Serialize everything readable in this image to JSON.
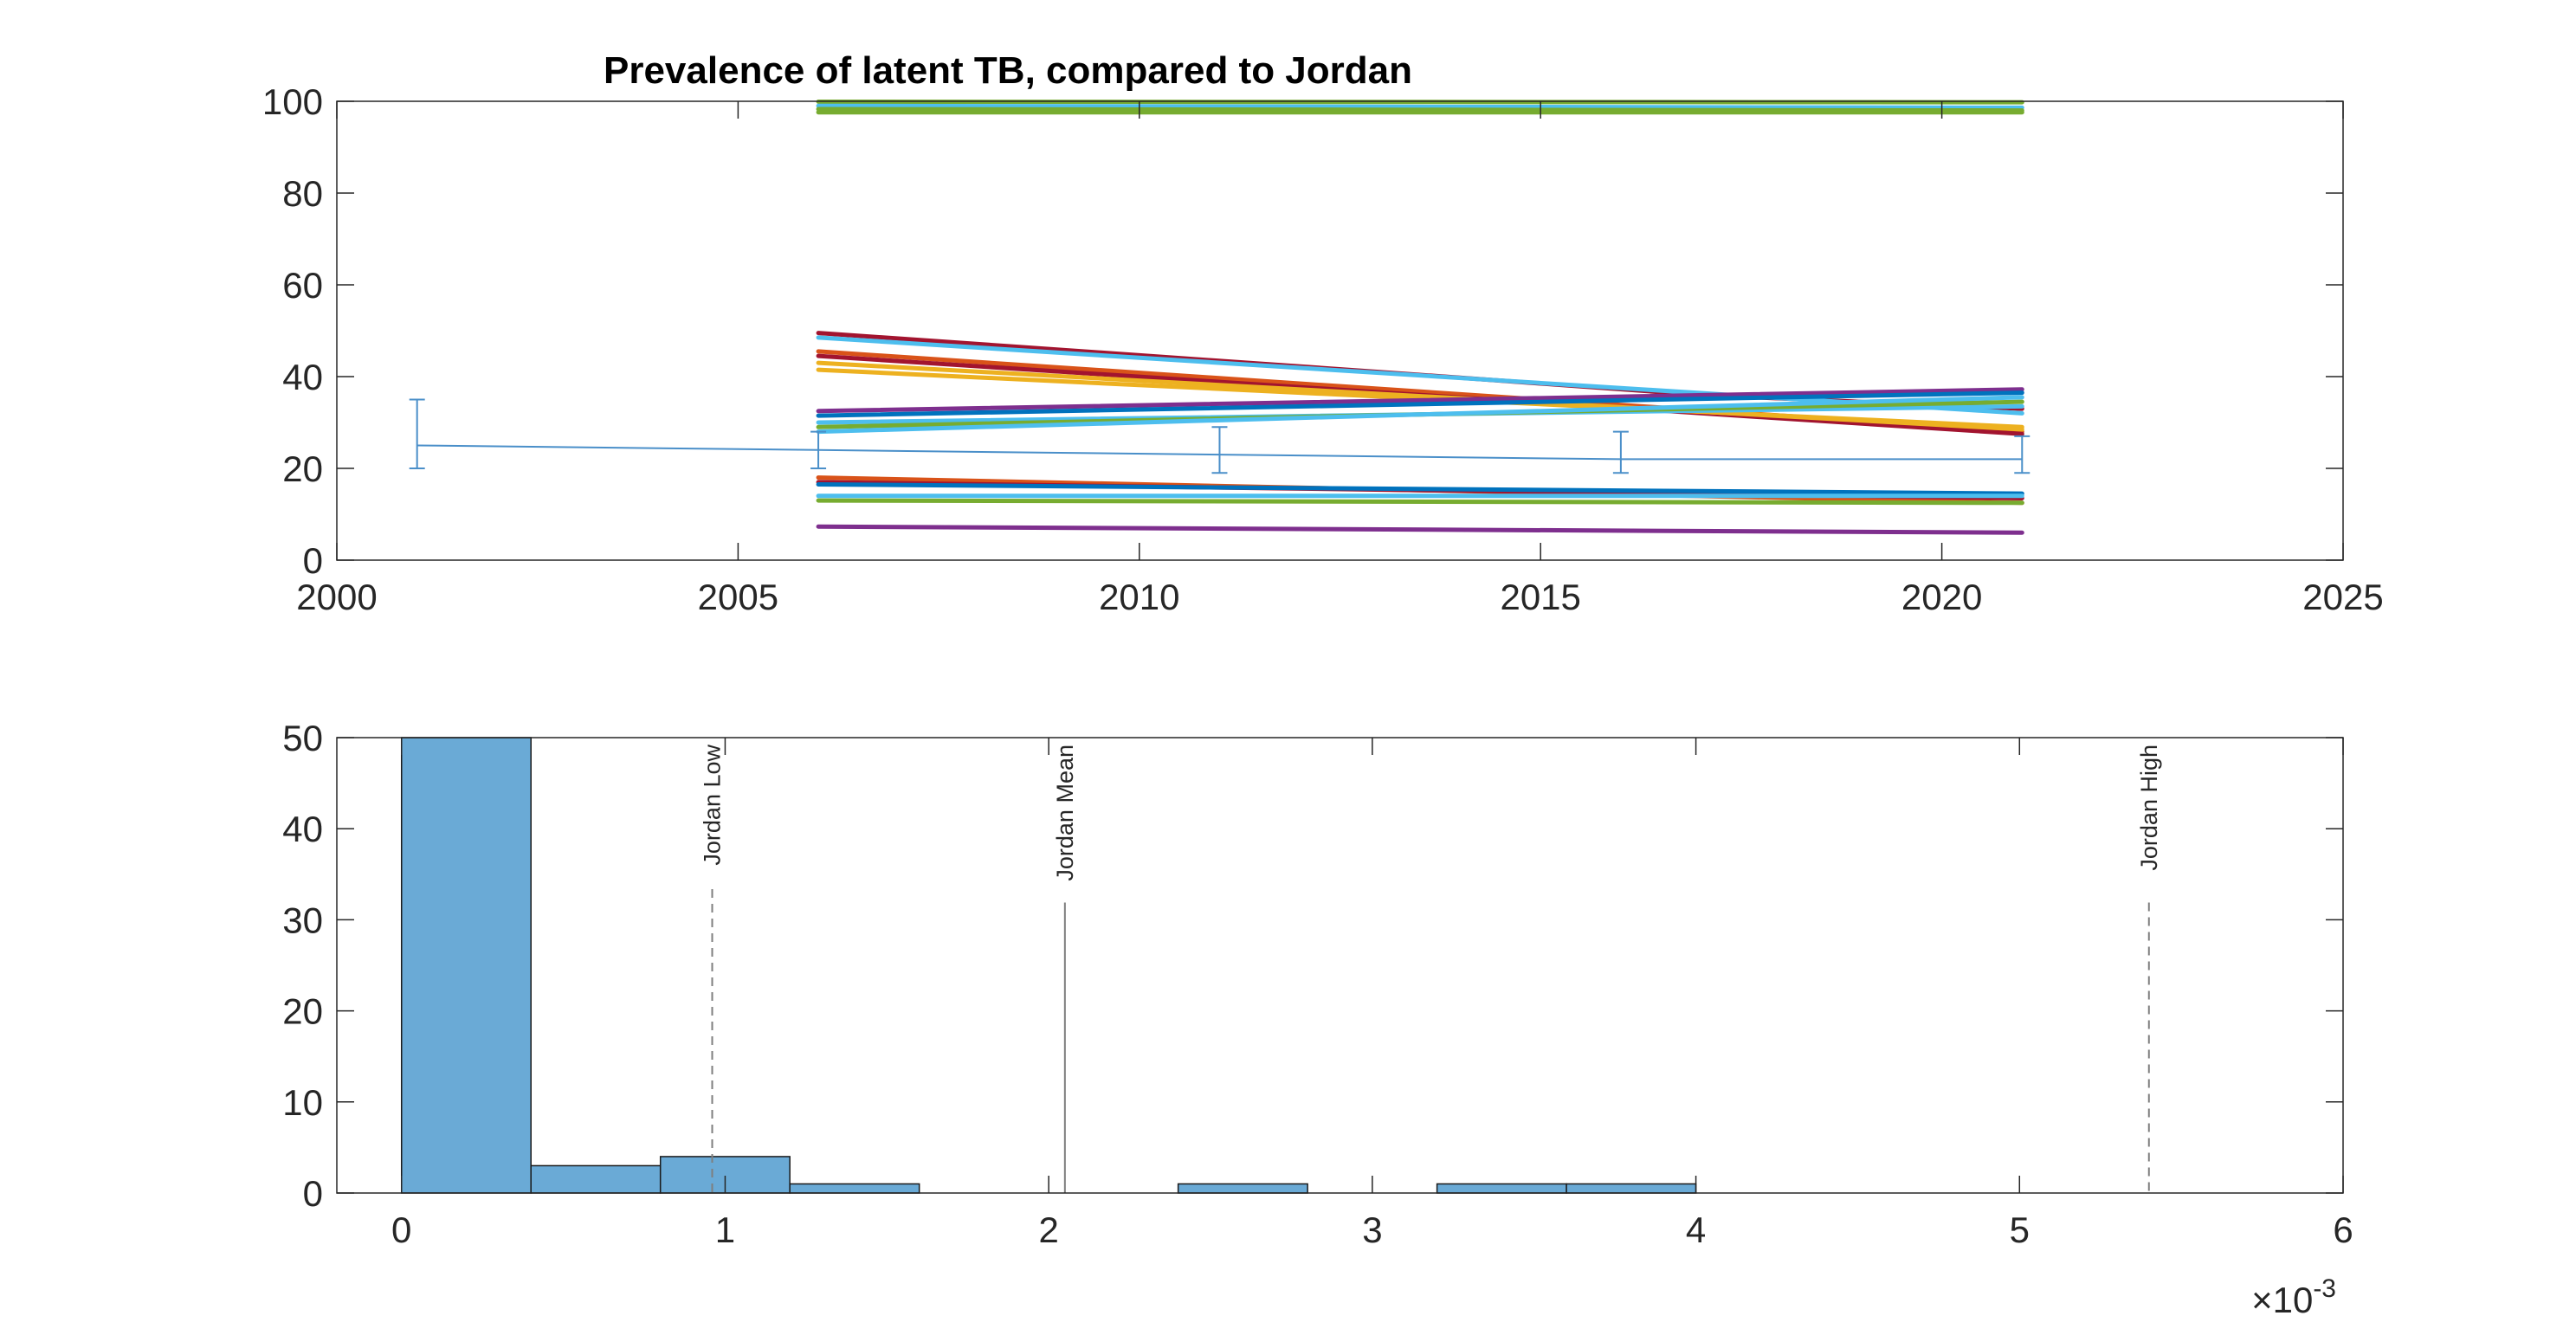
{
  "colors": {
    "histogram_fill": "#6aaad6",
    "histogram_edge": "#1a1a1a",
    "reference_line": "#7f7f7f",
    "errorbar": "#4a8fc9",
    "axes": "#262626",
    "tick": "#262626"
  },
  "chart_data": [
    {
      "type": "line",
      "title": "Prevalence of latent TB, compared to Jordan",
      "xlim": [
        2000,
        2025
      ],
      "ylim": [
        0,
        100
      ],
      "x_ticks": [
        "2000",
        "2005",
        "2010",
        "2015",
        "2020",
        "2025"
      ],
      "y_ticks": [
        "0",
        "20",
        "40",
        "60",
        "80",
        "100"
      ],
      "x_tick_values": [
        2000,
        2005,
        2010,
        2015,
        2020,
        2025
      ],
      "y_tick_values": [
        0,
        20,
        40,
        60,
        80,
        100
      ],
      "grid": false,
      "errorbar": {
        "x": [
          2001,
          2006,
          2011,
          2016,
          2021
        ],
        "y": [
          25,
          24,
          23,
          22,
          22
        ],
        "low": [
          20,
          20,
          19,
          19,
          19
        ],
        "high": [
          35,
          28,
          29,
          28,
          27
        ],
        "color": "#4a8fc9"
      },
      "series": [
        {
          "x": [
            2006,
            2021
          ],
          "y": [
            99.9,
            99.8
          ],
          "color": "#77ac30"
        },
        {
          "x": [
            2006,
            2021
          ],
          "y": [
            99.0,
            98.6
          ],
          "color": "#4dbeee"
        },
        {
          "x": [
            2006,
            2021
          ],
          "y": [
            98.3,
            98.0
          ],
          "color": "#77ac30"
        },
        {
          "x": [
            2006,
            2021
          ],
          "y": [
            97.6,
            97.6
          ],
          "color": "#77ac30"
        },
        {
          "x": [
            2006,
            2013,
            2017,
            2021
          ],
          "y": [
            49.5,
            41,
            36,
            33
          ],
          "color": "#a2142f"
        },
        {
          "x": [
            2006,
            2021
          ],
          "y": [
            48.5,
            32
          ],
          "color": "#4dbeee"
        },
        {
          "x": [
            2006,
            2021
          ],
          "y": [
            45.5,
            28
          ],
          "color": "#d95319"
        },
        {
          "x": [
            2006,
            2021
          ],
          "y": [
            44.5,
            27.5
          ],
          "color": "#a2142f"
        },
        {
          "x": [
            2006,
            2021
          ],
          "y": [
            43,
            28.5
          ],
          "color": "#edb120"
        },
        {
          "x": [
            2006,
            2021
          ],
          "y": [
            41.5,
            29
          ],
          "color": "#edb120"
        },
        {
          "x": [
            2006,
            2021
          ],
          "y": [
            32.5,
            37.2
          ],
          "color": "#7e2f8e"
        },
        {
          "x": [
            2006,
            2021
          ],
          "y": [
            31.5,
            36.5
          ],
          "color": "#0072bd"
        },
        {
          "x": [
            2006,
            2021
          ],
          "y": [
            30,
            33.5
          ],
          "color": "#4dbeee"
        },
        {
          "x": [
            2006,
            2021
          ],
          "y": [
            29,
            34.5
          ],
          "color": "#77ac30"
        },
        {
          "x": [
            2006,
            2021
          ],
          "y": [
            28,
            35.5
          ],
          "color": "#4dbeee"
        },
        {
          "x": [
            2006,
            2021
          ],
          "y": [
            18,
            12.5
          ],
          "color": "#d95319"
        },
        {
          "x": [
            2006,
            2021
          ],
          "y": [
            17,
            13.5
          ],
          "color": "#a2142f"
        },
        {
          "x": [
            2006,
            2021
          ],
          "y": [
            16.5,
            14.5
          ],
          "color": "#0072bd"
        },
        {
          "x": [
            2006,
            2021
          ],
          "y": [
            14,
            14
          ],
          "color": "#4dbeee"
        },
        {
          "x": [
            2006,
            2021
          ],
          "y": [
            13,
            12.5
          ],
          "color": "#77ac30"
        },
        {
          "x": [
            2006,
            2021
          ],
          "y": [
            7.3,
            6
          ],
          "color": "#7e2f8e"
        }
      ]
    },
    {
      "type": "bar",
      "subtype": "histogram",
      "xlim": [
        -0.0002,
        0.006
      ],
      "ylim": [
        0,
        50
      ],
      "x_ticks": [
        "0",
        "1",
        "2",
        "3",
        "4",
        "5",
        "6"
      ],
      "x_tick_values": [
        0,
        0.001,
        0.002,
        0.003,
        0.004,
        0.005,
        0.006
      ],
      "y_ticks": [
        "0",
        "10",
        "20",
        "30",
        "40",
        "50"
      ],
      "y_tick_values": [
        0,
        10,
        20,
        30,
        40,
        50
      ],
      "x_exponent_label": "×10",
      "x_exponent": "-3",
      "bin_edges": [
        0,
        0.0004,
        0.0008,
        0.0012,
        0.0016,
        0.002,
        0.0024,
        0.0028,
        0.0032,
        0.0036,
        0.004
      ],
      "counts": [
        50,
        3,
        4,
        1,
        0,
        0,
        1,
        0,
        1,
        1
      ],
      "reference_lines": [
        {
          "label": "Jordan Low",
          "x": 0.00096,
          "style": "dashed"
        },
        {
          "label": "Jordan Mean",
          "x": 0.00205,
          "style": "solid"
        },
        {
          "label": "Jordan High",
          "x": 0.0054,
          "style": "dashed"
        }
      ]
    }
  ]
}
